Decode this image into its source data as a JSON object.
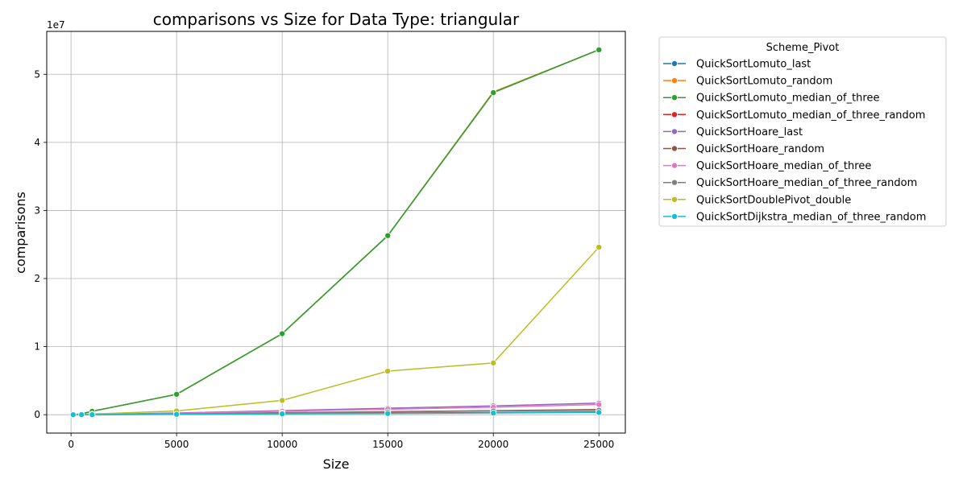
{
  "chart_data": {
    "type": "line",
    "title": "comparisons vs Size for Data Type: triangular",
    "xlabel": "Size",
    "ylabel": "comparisons",
    "y_offset_label": "1e7",
    "xlim": [
      -1150,
      26250
    ],
    "ylim": [
      -2700000,
      56300000
    ],
    "x_ticks": [
      0,
      5000,
      10000,
      15000,
      20000,
      25000
    ],
    "x_tick_labels": [
      "0",
      "5000",
      "10000",
      "15000",
      "20000",
      "25000"
    ],
    "y_ticks": [
      0,
      10000000,
      20000000,
      30000000,
      40000000,
      50000000
    ],
    "y_tick_labels": [
      "0",
      "1",
      "2",
      "3",
      "4",
      "5"
    ],
    "grid": true,
    "legend_title": "Scheme_Pivot",
    "legend_position": "outside-right",
    "x": [
      100,
      500,
      1000,
      5000,
      10000,
      15000,
      20000,
      25000
    ],
    "series": [
      {
        "name": "QuickSortLomuto_last",
        "color": "#1f77b4",
        "values": [
          5000,
          125000,
          500000,
          3000000,
          11900000,
          26300000,
          47400000,
          53600000
        ]
      },
      {
        "name": "QuickSortLomuto_random",
        "color": "#ff7f0e",
        "values": [
          5000,
          125000,
          500000,
          3000000,
          11900000,
          26300000,
          47400000,
          53600000
        ]
      },
      {
        "name": "QuickSortLomuto_median_of_three",
        "color": "#2ca02c",
        "values": [
          5000,
          125000,
          500000,
          3000000,
          11900000,
          26300000,
          47300000,
          53600000
        ]
      },
      {
        "name": "QuickSortLomuto_median_of_three_random",
        "color": "#d62728",
        "values": [
          800,
          5000,
          10000,
          70000,
          150000,
          230000,
          320000,
          400000
        ]
      },
      {
        "name": "QuickSortHoare_last",
        "color": "#9467bd",
        "values": [
          2000,
          15000,
          35000,
          250000,
          600000,
          950000,
          1300000,
          1700000
        ]
      },
      {
        "name": "QuickSortHoare_random",
        "color": "#8c564b",
        "values": [
          1000,
          7000,
          15000,
          120000,
          300000,
          450000,
          600000,
          750000
        ]
      },
      {
        "name": "QuickSortHoare_median_of_three",
        "color": "#e377c2",
        "values": [
          1800,
          12000,
          30000,
          200000,
          500000,
          800000,
          1100000,
          1500000
        ]
      },
      {
        "name": "QuickSortHoare_median_of_three_random",
        "color": "#7f7f7f",
        "values": [
          1000,
          6000,
          14000,
          100000,
          250000,
          400000,
          550000,
          650000
        ]
      },
      {
        "name": "QuickSortDoublePivot_double",
        "color": "#bcbd22",
        "values": [
          2500,
          40000,
          100000,
          550000,
          2100000,
          6400000,
          7600000,
          24600000
        ]
      },
      {
        "name": "QuickSortDijkstra_median_of_three_random",
        "color": "#17becf",
        "values": [
          700,
          4000,
          9000,
          60000,
          120000,
          180000,
          250000,
          330000
        ]
      }
    ]
  }
}
